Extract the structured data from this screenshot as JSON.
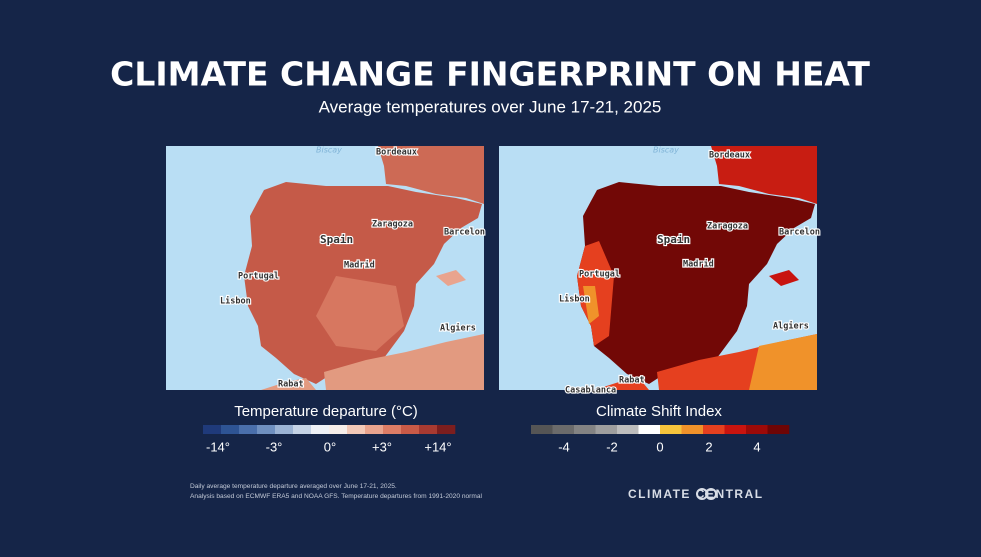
{
  "header": {
    "title": "CLIMATE CHANGE FINGERPRINT ON HEAT",
    "subtitle": "Average temperatures over June 17-21, 2025"
  },
  "left_map": {
    "labels": [
      "Biscay",
      "Bordeaux",
      "Zaragoza",
      "Spain",
      "Barcelon",
      "Madrid",
      "Portugal",
      "Lisbon",
      "Algiers",
      "Rabat"
    ]
  },
  "right_map": {
    "labels": [
      "Biscay",
      "Bordeaux",
      "Zaragoza",
      "Spain",
      "Barcelon",
      "Madrid",
      "Portugal",
      "Lisbon",
      "Algiers",
      "Rabat",
      "Casablanca"
    ]
  },
  "left_legend": {
    "title": "Temperature departure (°C)",
    "ticks": [
      "-14°",
      "-3°",
      "0°",
      "+3°",
      "+14°"
    ],
    "colors": [
      "#1f3a7a",
      "#2e5494",
      "#4a6fab",
      "#6f90c0",
      "#9bb3d4",
      "#c5d3e6",
      "#eef1f6",
      "#f6eeea",
      "#f2c9b8",
      "#e9a48e",
      "#dd7d66",
      "#c95a47",
      "#a83a31",
      "#7c1e1e"
    ]
  },
  "right_legend": {
    "title": "Climate Shift Index",
    "ticks": [
      "-4",
      "-2",
      "0",
      "2",
      "4"
    ],
    "colors": [
      "#555555",
      "#6b6b6b",
      "#838383",
      "#9e9e9e",
      "#bdbdbd",
      "#ffffff",
      "#f6c43c",
      "#f0922a",
      "#e5401f",
      "#c8140f",
      "#9c0a08",
      "#6e0505"
    ]
  },
  "footer": {
    "note_1": "Daily average temperature departure averaged over June 17-21, 2025.",
    "note_2": "Analysis based on ECMWF ERA5 and NOAA GFS. Temperature departures from 1991-2020 normal",
    "logo": "CLIMATE CENTRAL"
  }
}
